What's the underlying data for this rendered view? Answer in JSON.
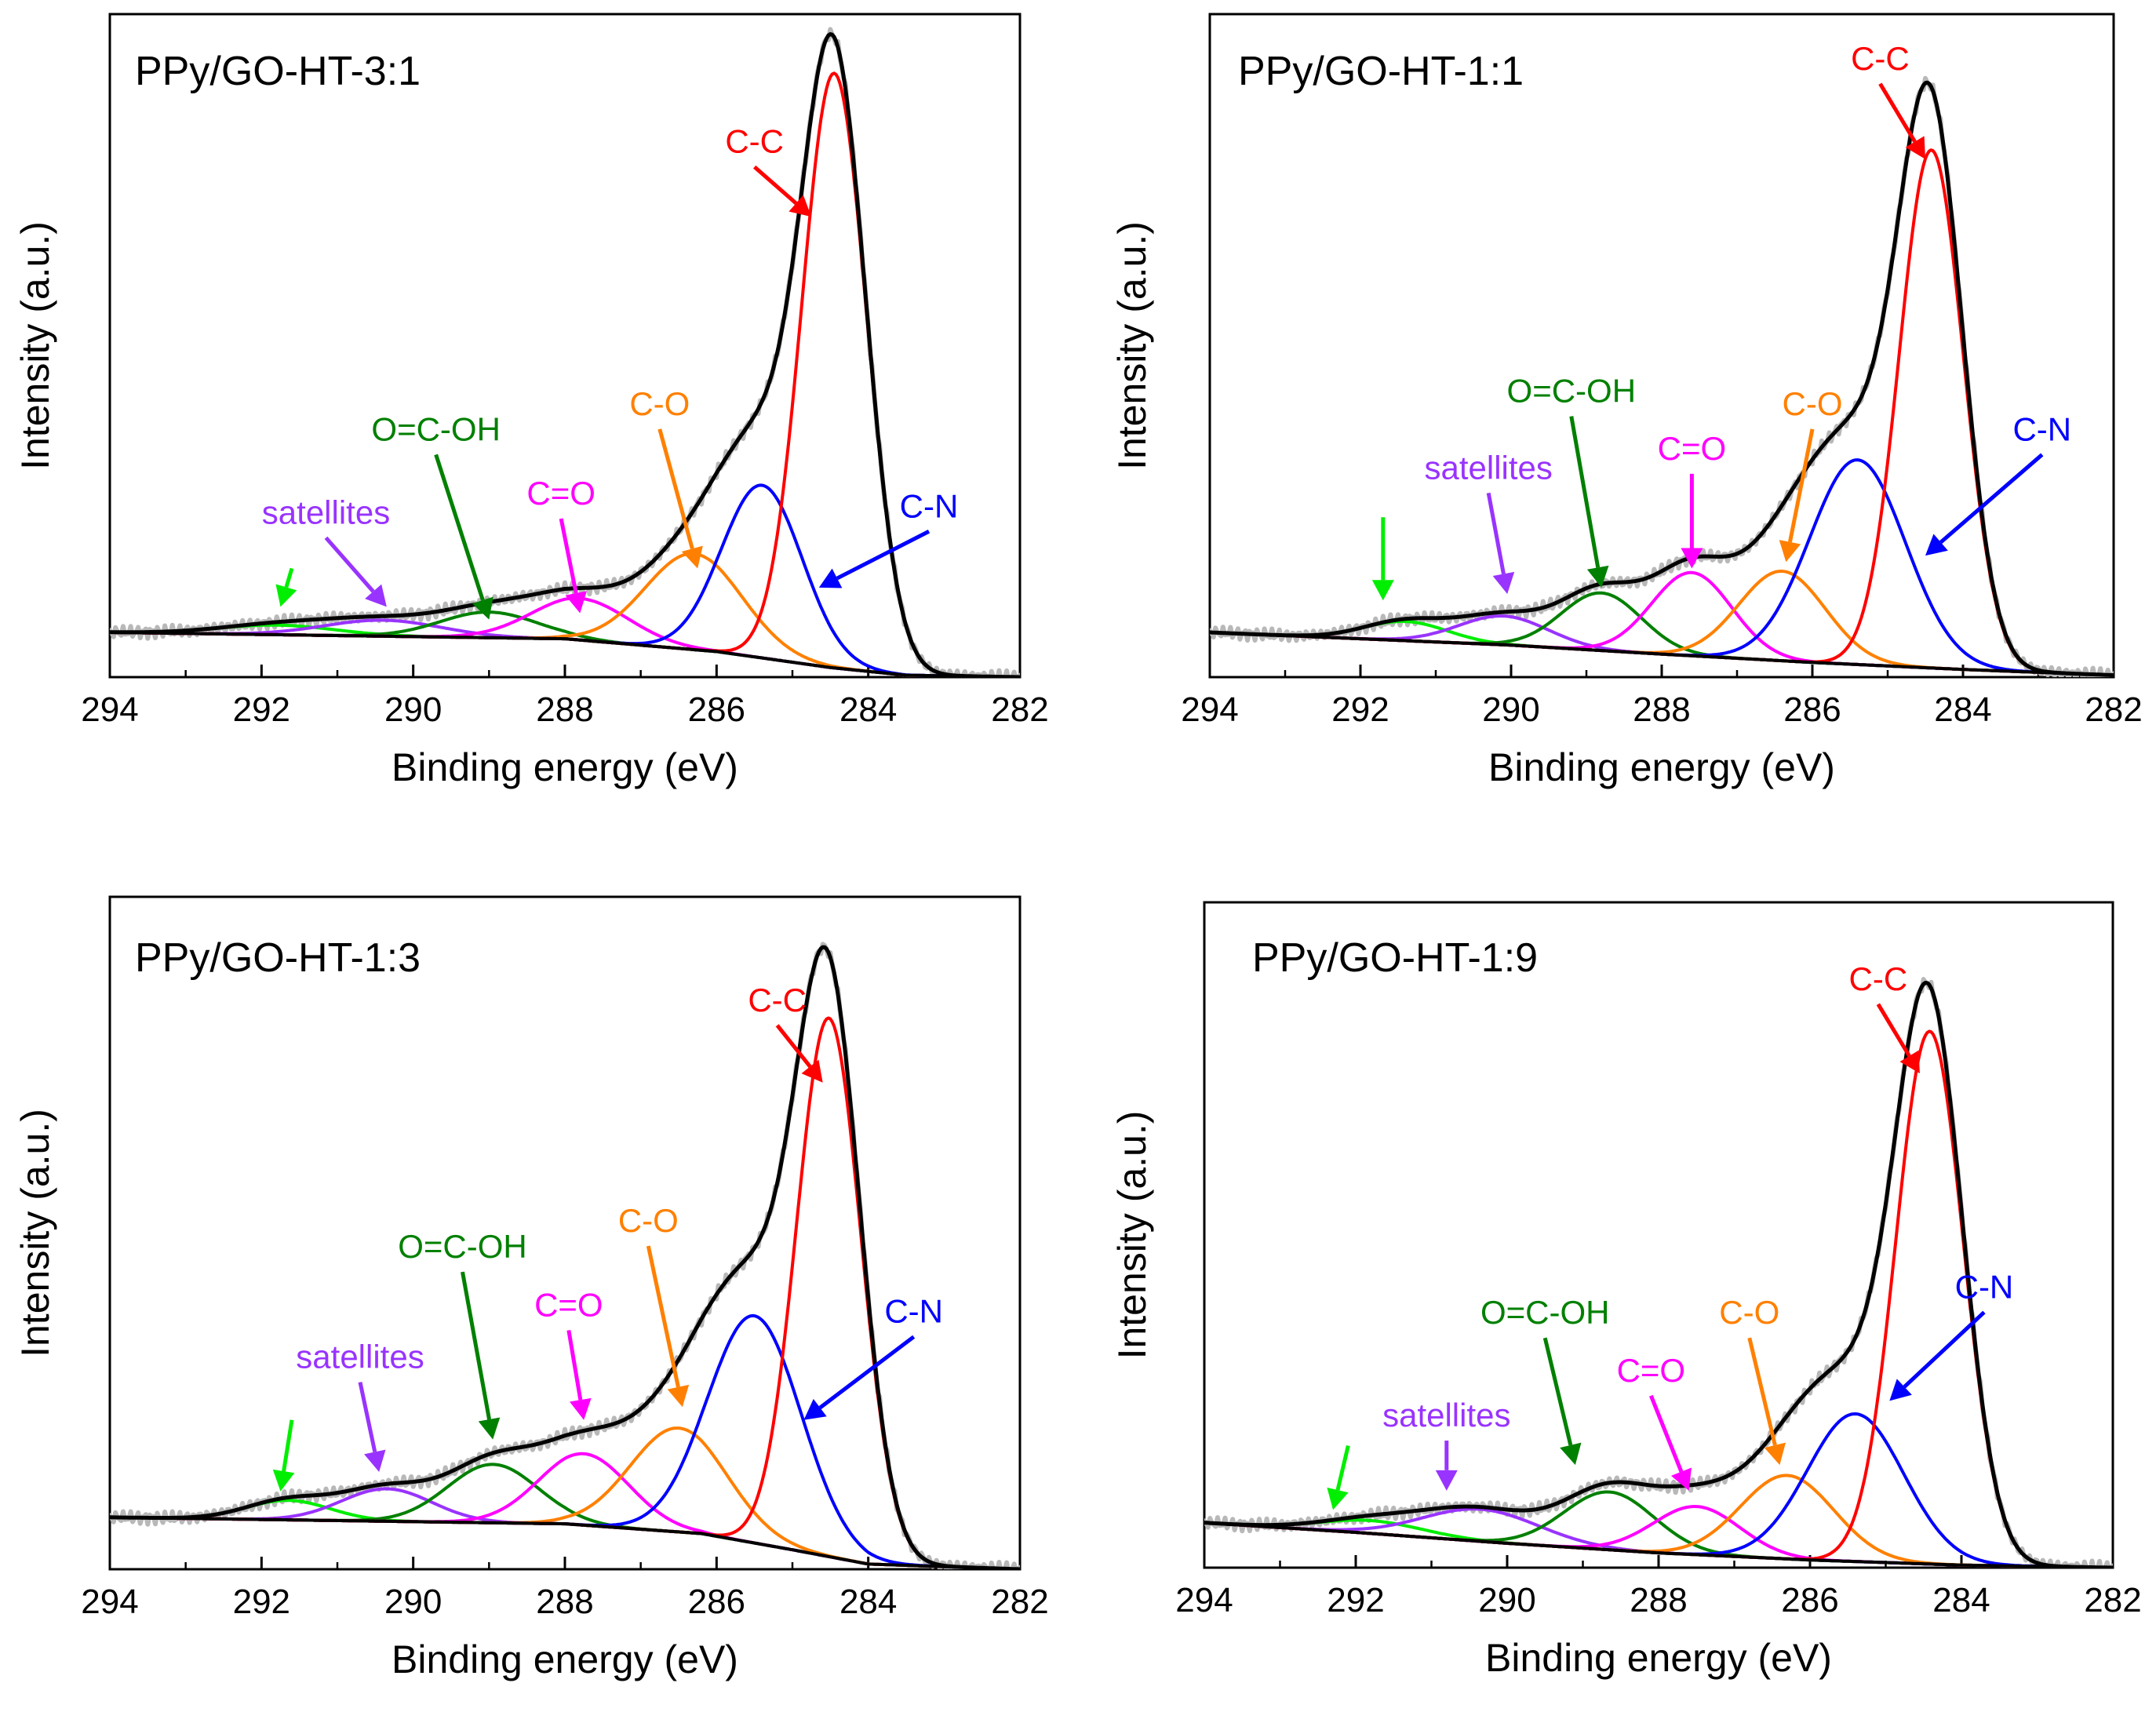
{
  "chart_data": [
    {
      "type": "line",
      "title": "PPy/GO-HT-3:1",
      "xlabel": "Binding energy (eV)",
      "ylabel": "Intensity (a.u.)",
      "xlim": [
        294,
        282
      ],
      "ylim": [
        0,
        100
      ],
      "xticks": [
        "294",
        "292",
        "290",
        "288",
        "286",
        "284",
        "282"
      ],
      "baseline": [
        {
          "x": 294,
          "y": 7
        },
        {
          "x": 288,
          "y": 6
        },
        {
          "x": 286,
          "y": 4
        },
        {
          "x": 284.5,
          "y": 1.5
        },
        {
          "x": 283.5,
          "y": 0.3
        },
        {
          "x": 282,
          "y": 0
        }
      ],
      "components": [
        {
          "name": "C-C",
          "color": "#ff0000",
          "center": 284.45,
          "height": 93,
          "fwhm": 1.0
        },
        {
          "name": "C-N",
          "color": "#0000ff",
          "center": 285.4,
          "height": 27,
          "fwhm": 1.25
        },
        {
          "name": "C-O",
          "color": "#ff8000",
          "center": 286.3,
          "height": 15,
          "fwhm": 1.5
        },
        {
          "name": "C=O",
          "color": "#ff00ff",
          "center": 287.8,
          "height": 6.5,
          "fwhm": 1.5
        },
        {
          "name": "O=C-OH",
          "color": "#008000",
          "center": 289.0,
          "height": 4,
          "fwhm": 1.5
        },
        {
          "name": "satellites (1)",
          "color": "#9933ff",
          "center": 290.4,
          "height": 2.5,
          "fwhm": 1.8
        },
        {
          "name": "satellites (2)",
          "color": "#00ee00",
          "center": 291.8,
          "height": 1.5,
          "fwhm": 1.8
        }
      ],
      "annotations": [
        {
          "text": "C-C",
          "color": "#ff0000",
          "x": 285.5,
          "y": 82,
          "ax": 284.75,
          "ay": 72
        },
        {
          "text": "C-N",
          "color": "#0000ff",
          "x": 283.2,
          "y": 25,
          "ax": 284.65,
          "ay": 14
        },
        {
          "text": "C-O",
          "color": "#ff8000",
          "x": 286.75,
          "y": 41,
          "ax": 286.25,
          "ay": 17
        },
        {
          "text": "C=O",
          "color": "#ff00ff",
          "x": 288.05,
          "y": 27,
          "ax": 287.8,
          "ay": 10
        },
        {
          "text": "O=C-OH",
          "color": "#008000",
          "x": 289.7,
          "y": 37,
          "ax": 289.0,
          "ay": 9
        },
        {
          "text": "satellites",
          "color": "#9933ff",
          "x": 291.15,
          "y": 24,
          "ax": 290.35,
          "ay": 11
        },
        {
          "text": "",
          "color": "#00ee00",
          "x": 291.6,
          "y": 17,
          "ax": 291.75,
          "ay": 11
        }
      ],
      "satellites_label": "satellites"
    },
    {
      "type": "line",
      "title": "PPy/GO-HT-1:1",
      "xlabel": "Binding energy (eV)",
      "ylabel": "Intensity (a.u.)",
      "xlim": [
        294,
        282
      ],
      "ylim": [
        0,
        100
      ],
      "xticks": [
        "294",
        "292",
        "290",
        "288",
        "286",
        "284",
        "282"
      ],
      "baseline": [
        {
          "x": 294,
          "y": 7
        },
        {
          "x": 292,
          "y": 6
        },
        {
          "x": 290,
          "y": 5
        },
        {
          "x": 288,
          "y": 3.6
        },
        {
          "x": 286,
          "y": 2.3
        },
        {
          "x": 284,
          "y": 1.2
        },
        {
          "x": 282,
          "y": 0.3
        }
      ],
      "components": [
        {
          "name": "C-C",
          "color": "#ff0000",
          "center": 284.42,
          "height": 81,
          "fwhm": 1.0
        },
        {
          "name": "C-N",
          "color": "#0000ff",
          "center": 285.4,
          "height": 32,
          "fwhm": 1.5
        },
        {
          "name": "C-O",
          "color": "#ff8000",
          "center": 286.4,
          "height": 14,
          "fwhm": 1.35
        },
        {
          "name": "C=O",
          "color": "#ff00ff",
          "center": 287.6,
          "height": 13,
          "fwhm": 1.25
        },
        {
          "name": "O=C-OH",
          "color": "#008000",
          "center": 288.8,
          "height": 9,
          "fwhm": 1.25
        },
        {
          "name": "satellites (1)",
          "color": "#9933ff",
          "center": 290.1,
          "height": 4.5,
          "fwhm": 1.4
        },
        {
          "name": "satellites (2)",
          "color": "#00ee00",
          "center": 291.4,
          "height": 3,
          "fwhm": 1.3
        }
      ],
      "annotations": [
        {
          "text": "C-C",
          "color": "#ff0000",
          "x": 285.1,
          "y": 95,
          "ax": 284.5,
          "ay": 81
        },
        {
          "text": "C-N",
          "color": "#0000ff",
          "x": 282.95,
          "y": 37,
          "ax": 284.5,
          "ay": 19
        },
        {
          "text": "C-O",
          "color": "#ff8000",
          "x": 286.0,
          "y": 41,
          "ax": 286.35,
          "ay": 18
        },
        {
          "text": "C=O",
          "color": "#ff00ff",
          "x": 287.6,
          "y": 34,
          "ax": 287.6,
          "ay": 17
        },
        {
          "text": "O=C-OH",
          "color": "#008000",
          "x": 289.2,
          "y": 43,
          "ax": 288.8,
          "ay": 14
        },
        {
          "text": "satellites",
          "color": "#9933ff",
          "x": 290.3,
          "y": 31,
          "ax": 290.05,
          "ay": 13
        },
        {
          "text": "",
          "color": "#00ee00",
          "x": 291.7,
          "y": 25,
          "ax": 291.7,
          "ay": 12
        }
      ],
      "satellites_label": "satellites"
    },
    {
      "type": "line",
      "title": "PPy/GO-HT-1:3",
      "xlabel": "Binding energy (eV)",
      "ylabel": "Intensity (a.u.)",
      "xlim": [
        294,
        282
      ],
      "ylim": [
        0,
        100
      ],
      "xticks": [
        "294",
        "292",
        "290",
        "288",
        "286",
        "284",
        "282"
      ],
      "baseline": [
        {
          "x": 294,
          "y": 8
        },
        {
          "x": 288,
          "y": 7
        },
        {
          "x": 286.2,
          "y": 5.5
        },
        {
          "x": 285,
          "y": 3
        },
        {
          "x": 284,
          "y": 0.8
        },
        {
          "x": 282,
          "y": 0
        }
      ],
      "components": [
        {
          "name": "C-C",
          "color": "#ff0000",
          "center": 284.52,
          "height": 83,
          "fwhm": 1.0
        },
        {
          "name": "C-N",
          "color": "#0000ff",
          "center": 285.5,
          "height": 35,
          "fwhm": 1.45
        },
        {
          "name": "C-O",
          "color": "#ff8000",
          "center": 286.5,
          "height": 16,
          "fwhm": 1.5
        },
        {
          "name": "C=O",
          "color": "#ff00ff",
          "center": 287.75,
          "height": 11,
          "fwhm": 1.4
        },
        {
          "name": "O=C-OH",
          "color": "#008000",
          "center": 288.95,
          "height": 9,
          "fwhm": 1.4
        },
        {
          "name": "satellites (1)",
          "color": "#9933ff",
          "center": 290.35,
          "height": 5,
          "fwhm": 1.4
        },
        {
          "name": "satellites (2)",
          "color": "#00ee00",
          "center": 291.65,
          "height": 3,
          "fwhm": 1.3
        }
      ],
      "annotations": [
        {
          "text": "C-C",
          "color": "#ff0000",
          "x": 285.2,
          "y": 86,
          "ax": 284.6,
          "ay": 75
        },
        {
          "text": "C-N",
          "color": "#0000ff",
          "x": 283.4,
          "y": 38,
          "ax": 284.85,
          "ay": 23
        },
        {
          "text": "C-O",
          "color": "#ff8000",
          "x": 286.9,
          "y": 52,
          "ax": 286.45,
          "ay": 25
        },
        {
          "text": "C=O",
          "color": "#ff00ff",
          "x": 287.95,
          "y": 39,
          "ax": 287.75,
          "ay": 23
        },
        {
          "text": "O=C-OH",
          "color": "#008000",
          "x": 289.35,
          "y": 48,
          "ax": 288.95,
          "ay": 20
        },
        {
          "text": "satellites",
          "color": "#9933ff",
          "x": 290.7,
          "y": 31,
          "ax": 290.45,
          "ay": 15
        },
        {
          "text": "",
          "color": "#00ee00",
          "x": 291.6,
          "y": 23,
          "ax": 291.75,
          "ay": 12
        }
      ],
      "satellites_label": "satellites"
    },
    {
      "type": "line",
      "title": "PPy/GO-HT-1:9",
      "xlabel": "Binding energy (eV)",
      "ylabel": "Intensity (a.u.)",
      "xlim": [
        294,
        282
      ],
      "ylim": [
        0,
        100
      ],
      "xticks": [
        "294",
        "292",
        "290",
        "288",
        "286",
        "284",
        "282"
      ],
      "baseline": [
        {
          "x": 294,
          "y": 7
        },
        {
          "x": 292,
          "y": 5.5
        },
        {
          "x": 290,
          "y": 3.8
        },
        {
          "x": 288,
          "y": 2.3
        },
        {
          "x": 286,
          "y": 1.2
        },
        {
          "x": 284,
          "y": 0.4
        },
        {
          "x": 282,
          "y": 0
        }
      ],
      "components": [
        {
          "name": "C-C",
          "color": "#ff0000",
          "center": 284.42,
          "height": 83,
          "fwhm": 1.05
        },
        {
          "name": "C-N",
          "color": "#0000ff",
          "center": 285.4,
          "height": 23,
          "fwhm": 1.5
        },
        {
          "name": "C-O",
          "color": "#ff8000",
          "center": 286.3,
          "height": 13,
          "fwhm": 1.45
        },
        {
          "name": "C=O",
          "color": "#ff00ff",
          "center": 287.5,
          "height": 7.5,
          "fwhm": 1.35
        },
        {
          "name": "O=C-OH",
          "color": "#008000",
          "center": 288.65,
          "height": 9,
          "fwhm": 1.4
        },
        {
          "name": "satellites (1)",
          "color": "#9933ff",
          "center": 290.35,
          "height": 5,
          "fwhm": 1.8
        },
        {
          "name": "satellites (2)",
          "color": "#00ee00",
          "center": 291.8,
          "height": 2,
          "fwhm": 1.6
        }
      ],
      "annotations": [
        {
          "text": "C-C",
          "color": "#ff0000",
          "x": 285.1,
          "y": 90,
          "ax": 284.55,
          "ay": 77
        },
        {
          "text": "C-N",
          "color": "#0000ff",
          "x": 283.7,
          "y": 42,
          "ax": 284.95,
          "ay": 26
        },
        {
          "text": "C-O",
          "color": "#ff8000",
          "x": 286.8,
          "y": 38,
          "ax": 286.4,
          "ay": 16
        },
        {
          "text": "C=O",
          "color": "#ff00ff",
          "x": 288.1,
          "y": 29,
          "ax": 287.6,
          "ay": 12
        },
        {
          "text": "O=C-OH",
          "color": "#008000",
          "x": 289.5,
          "y": 38,
          "ax": 289.1,
          "ay": 16
        },
        {
          "text": "satellites",
          "color": "#9933ff",
          "x": 290.8,
          "y": 22,
          "ax": 290.8,
          "ay": 12
        },
        {
          "text": "",
          "color": "#00ee00",
          "x": 292.1,
          "y": 19,
          "ax": 292.3,
          "ay": 9
        }
      ],
      "satellites_label": "satellites"
    }
  ]
}
